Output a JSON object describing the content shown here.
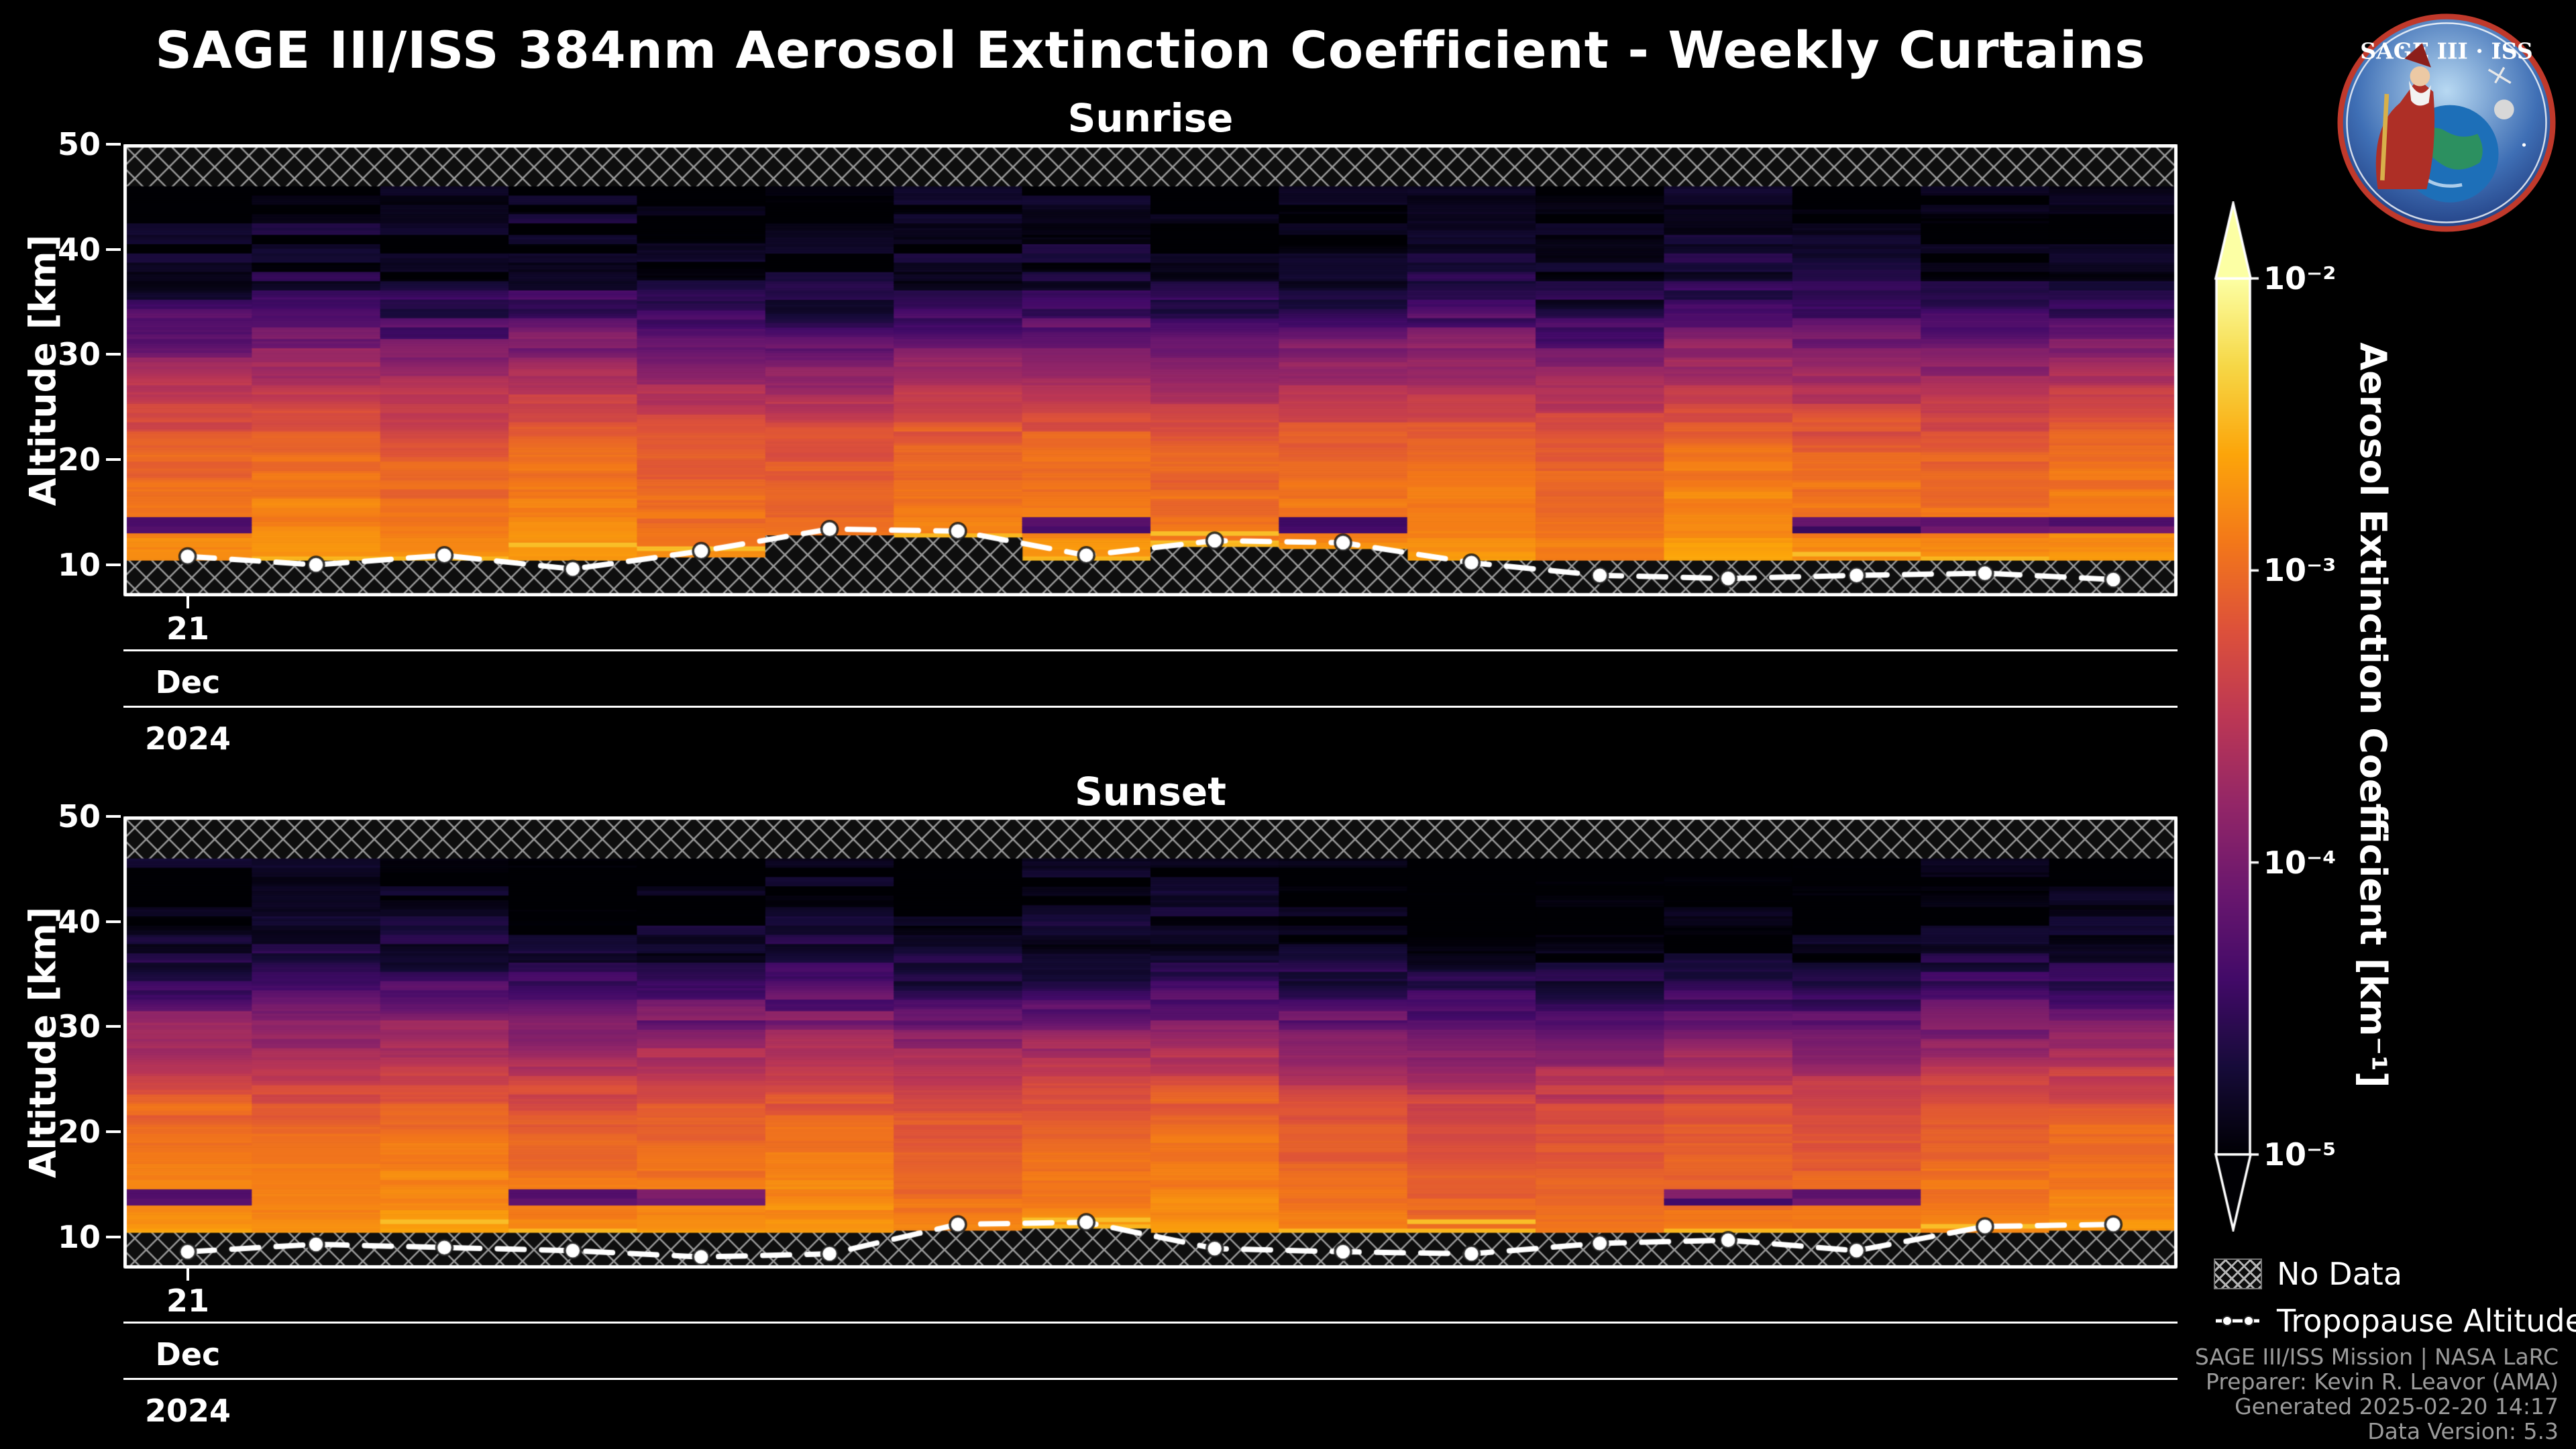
{
  "header": {
    "title": "SAGE III/ISS 384nm Aerosol Extinction Coefficient - Weekly Curtains"
  },
  "logo": {
    "title": "SAGE III · ISS"
  },
  "axes": {
    "y_label": "Altitude [km]",
    "y_ticks": [
      10,
      20,
      30,
      40,
      50
    ],
    "y_range_km": [
      7,
      50
    ],
    "day_tick": "21",
    "month_tick": "Dec",
    "year_tick": "2024"
  },
  "colorbar": {
    "label": "Aerosol Extinction Coefficient [km⁻¹]",
    "scale": "log",
    "range_log10": [
      -5,
      -2
    ],
    "ticks": [
      {
        "label": "10⁻²",
        "log10": -2
      },
      {
        "label": "10⁻³",
        "log10": -3
      },
      {
        "label": "10⁻⁴",
        "log10": -4
      },
      {
        "label": "10⁻⁵",
        "log10": -5
      }
    ],
    "colormap": "inferno",
    "colormap_stops": [
      [
        0.0,
        "#000004"
      ],
      [
        0.1,
        "#160b39"
      ],
      [
        0.2,
        "#420a68"
      ],
      [
        0.3,
        "#6a176e"
      ],
      [
        0.4,
        "#932667"
      ],
      [
        0.5,
        "#bc3754"
      ],
      [
        0.6,
        "#dd513a"
      ],
      [
        0.7,
        "#f37819"
      ],
      [
        0.8,
        "#fca50a"
      ],
      [
        0.9,
        "#f6d746"
      ],
      [
        1.0,
        "#fcffa4"
      ]
    ]
  },
  "legend": {
    "no_data_label": "No Data",
    "tropopause_label": "Tropopause Altitude"
  },
  "attribution": {
    "line1": "SAGE III/ISS Mission | NASA LaRC",
    "line2": "Preparer: Kevin R. Leavor (AMA)",
    "line3": "Generated 2025-02-20 14:17",
    "line4": "Data Version: 5.3"
  },
  "chart_data": {
    "type": "heatmap",
    "title": "SAGE III/ISS 384nm Aerosol Extinction Coefficient - Weekly Curtains",
    "value_units": "km⁻¹",
    "value_scale": {
      "type": "log10",
      "range_log10": [
        -5,
        -2
      ]
    },
    "x_axis": {
      "n_columns": 16,
      "tick_labels": {
        "day": "21",
        "month": "Dec",
        "year": "2024"
      }
    },
    "y_axis": {
      "label": "Altitude [km]",
      "range_km": [
        7,
        50
      ],
      "ticks": [
        10,
        20,
        30,
        40,
        50
      ]
    },
    "no_data_top_km": 46,
    "data_bottom_km": 10.4,
    "base_profile_log10": [
      [
        10.4,
        -2.7
      ],
      [
        11.5,
        -2.75
      ],
      [
        13,
        -2.85
      ],
      [
        16,
        -2.92
      ],
      [
        18,
        -2.98
      ],
      [
        20,
        -3.02
      ],
      [
        22,
        -3.12
      ],
      [
        24,
        -3.3
      ],
      [
        26,
        -3.5
      ],
      [
        28,
        -3.72
      ],
      [
        30,
        -3.95
      ],
      [
        32,
        -4.2
      ],
      [
        34,
        -4.45
      ],
      [
        36,
        -4.65
      ],
      [
        38,
        -4.82
      ],
      [
        40,
        -4.9
      ],
      [
        43,
        -4.95
      ],
      [
        46,
        -5.0
      ]
    ],
    "panels": [
      {
        "title": "Sunrise",
        "seed": 7,
        "tropopause_altitude_km": [
          10.8,
          10.0,
          10.9,
          9.6,
          11.3,
          13.4,
          13.2,
          10.9,
          12.3,
          12.1,
          10.2,
          9.0,
          8.7,
          9.0,
          9.2,
          8.6
        ],
        "column_brightness_offset": [
          0,
          0.05,
          -0.05,
          0.08,
          -0.1,
          -0.12,
          0,
          0.05,
          -0.05,
          0,
          0.06,
          -0.08,
          0.1,
          0,
          -0.05,
          0.05
        ]
      },
      {
        "title": "Sunset",
        "seed": 13,
        "tropopause_altitude_km": [
          8.6,
          9.3,
          9.0,
          8.7,
          8.1,
          8.4,
          11.2,
          11.4,
          8.9,
          8.6,
          8.4,
          9.4,
          9.7,
          8.7,
          11.0,
          11.2
        ],
        "column_brightness_offset": [
          0.05,
          0,
          0.08,
          -0.05,
          0,
          0.05,
          -0.1,
          0,
          0.05,
          -0.12,
          -0.2,
          -0.18,
          -0.12,
          -0.15,
          -0.05,
          0
        ]
      }
    ]
  }
}
